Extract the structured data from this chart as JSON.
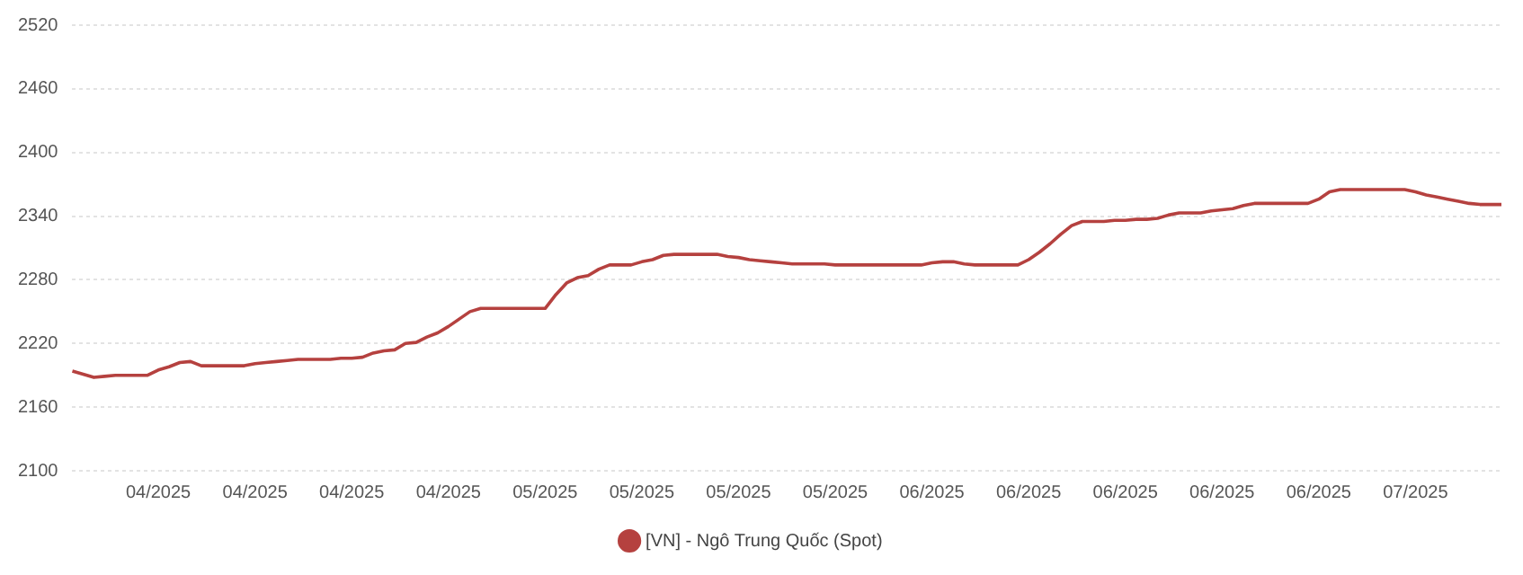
{
  "chart_data": {
    "type": "line",
    "categories": [
      null,
      null,
      null,
      null,
      null,
      null,
      null,
      null,
      "04/2025",
      null,
      null,
      null,
      null,
      null,
      null,
      null,
      null,
      "04/2025",
      null,
      null,
      null,
      null,
      null,
      null,
      null,
      null,
      "04/2025",
      null,
      null,
      null,
      null,
      null,
      null,
      null,
      null,
      "04/2025",
      null,
      null,
      null,
      null,
      null,
      null,
      null,
      null,
      "05/2025",
      null,
      null,
      null,
      null,
      null,
      null,
      null,
      null,
      "05/2025",
      null,
      null,
      null,
      null,
      null,
      null,
      null,
      null,
      "05/2025",
      null,
      null,
      null,
      null,
      null,
      null,
      null,
      null,
      "05/2025",
      null,
      null,
      null,
      null,
      null,
      null,
      null,
      null,
      "06/2025",
      null,
      null,
      null,
      null,
      null,
      null,
      null,
      null,
      "06/2025",
      null,
      null,
      null,
      null,
      null,
      null,
      null,
      null,
      "06/2025",
      null,
      null,
      null,
      null,
      null,
      null,
      null,
      null,
      "06/2025",
      null,
      null,
      null,
      null,
      null,
      null,
      null,
      null,
      "06/2025",
      null,
      null,
      null,
      null,
      null,
      null,
      null,
      null,
      "07/2025",
      null,
      null,
      null,
      null,
      null,
      null,
      null,
      null
    ],
    "series": [
      {
        "name": "[VN] - Ngô Trung Quốc (Spot)",
        "color": "#b5413f",
        "values": [
          2194,
          2191,
          2188,
          2189,
          2190,
          2190,
          2190,
          2190,
          2195,
          2198,
          2202,
          2203,
          2199,
          2199,
          2199,
          2199,
          2199,
          2201,
          2202,
          2203,
          2204,
          2205,
          2205,
          2205,
          2205,
          2206,
          2206,
          2207,
          2211,
          2213,
          2214,
          2220,
          2221,
          2226,
          2230,
          2236,
          2243,
          2250,
          2253,
          2253,
          2253,
          2253,
          2253,
          2253,
          2253,
          2266,
          2277,
          2282,
          2284,
          2290,
          2294,
          2294,
          2294,
          2297,
          2299,
          2303,
          2304,
          2304,
          2304,
          2304,
          2304,
          2302,
          2301,
          2299,
          2298,
          2297,
          2296,
          2295,
          2295,
          2295,
          2295,
          2294,
          2294,
          2294,
          2294,
          2294,
          2294,
          2294,
          2294,
          2294,
          2296,
          2297,
          2297,
          2295,
          2294,
          2294,
          2294,
          2294,
          2294,
          2299,
          2306,
          2314,
          2323,
          2331,
          2335,
          2335,
          2335,
          2336,
          2336,
          2337,
          2337,
          2338,
          2341,
          2343,
          2343,
          2343,
          2345,
          2346,
          2347,
          2350,
          2352,
          2352,
          2352,
          2352,
          2352,
          2352,
          2356,
          2363,
          2365,
          2365,
          2365,
          2365,
          2365,
          2365,
          2365,
          2363,
          2360,
          2358,
          2356,
          2354,
          2352,
          2351,
          2351,
          2351
        ]
      }
    ],
    "ylim": [
      2100,
      2520
    ],
    "yticks": [
      2100,
      2160,
      2220,
      2280,
      2340,
      2400,
      2460,
      2520
    ],
    "grid": "y",
    "legend": "bottom",
    "marker": "none",
    "line_style": "solid"
  }
}
